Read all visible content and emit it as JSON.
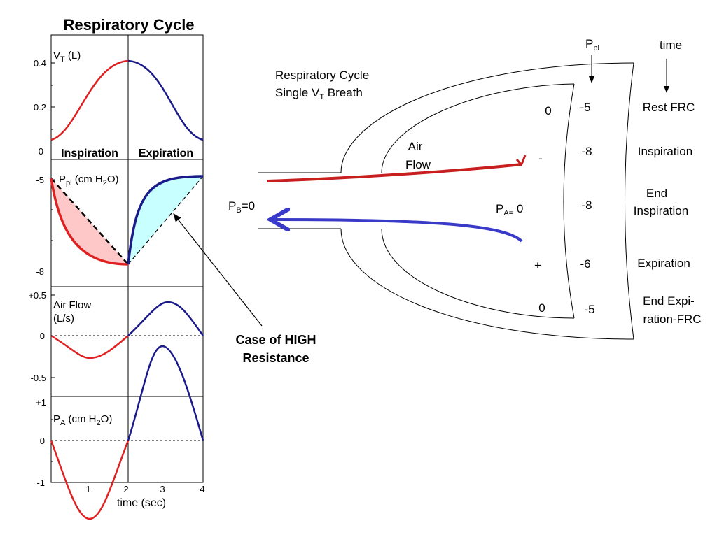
{
  "left_panel": {
    "title": "Respiratory Cycle",
    "vt": {
      "main": "V",
      "sub": "T",
      "rest": " (L)",
      "ticks": [
        "0.4",
        "0.2",
        "0"
      ]
    },
    "ppl": {
      "main": "P",
      "sub": "pl",
      "mid": " (cm H",
      "sub2": "2",
      "rest": "O)",
      "ticks": [
        "-5",
        "-8"
      ]
    },
    "flow": {
      "lines": [
        "Air Flow",
        "(L/s)"
      ],
      "ticks": [
        "+0.5",
        "0",
        "-0.5"
      ]
    },
    "pa": {
      "main": "P",
      "sub": "A",
      "mid": " (cm H",
      "sub2": "2",
      "rest": "O)",
      "ticks": [
        "+1",
        "0",
        "-1"
      ]
    },
    "phases": [
      "Inspiration",
      "Expiration"
    ],
    "x_ticks": [
      "1",
      "2",
      "3",
      "4"
    ],
    "x_label": "time (sec)"
  },
  "callout": [
    "Case of HIGH",
    "Resistance"
  ],
  "lung": {
    "title": {
      "line1": "Respiratory Cycle",
      "main": "Single V",
      "sub": "T",
      "rest": " Breath"
    },
    "air_flow": [
      "Air",
      "Flow"
    ],
    "pb": {
      "main": "P",
      "sub": "B",
      "rest": "=0"
    },
    "pa": {
      "main": "P",
      "sub": "A=",
      "rest": " 0"
    },
    "ppl_header": {
      "main": "P",
      "sub": "pl"
    },
    "time_header": "time",
    "alveolar_column": [
      "0",
      "-",
      "+",
      "0"
    ],
    "pleural_column": [
      "-5",
      "-8",
      "-8",
      "-6",
      "-5"
    ],
    "phases": [
      [
        "Rest FRC"
      ],
      [
        "Inspiration"
      ],
      [
        "End",
        "Inspiration"
      ],
      [
        "Expiration"
      ],
      [
        "End Expi-",
        "ration-FRC"
      ]
    ]
  }
}
